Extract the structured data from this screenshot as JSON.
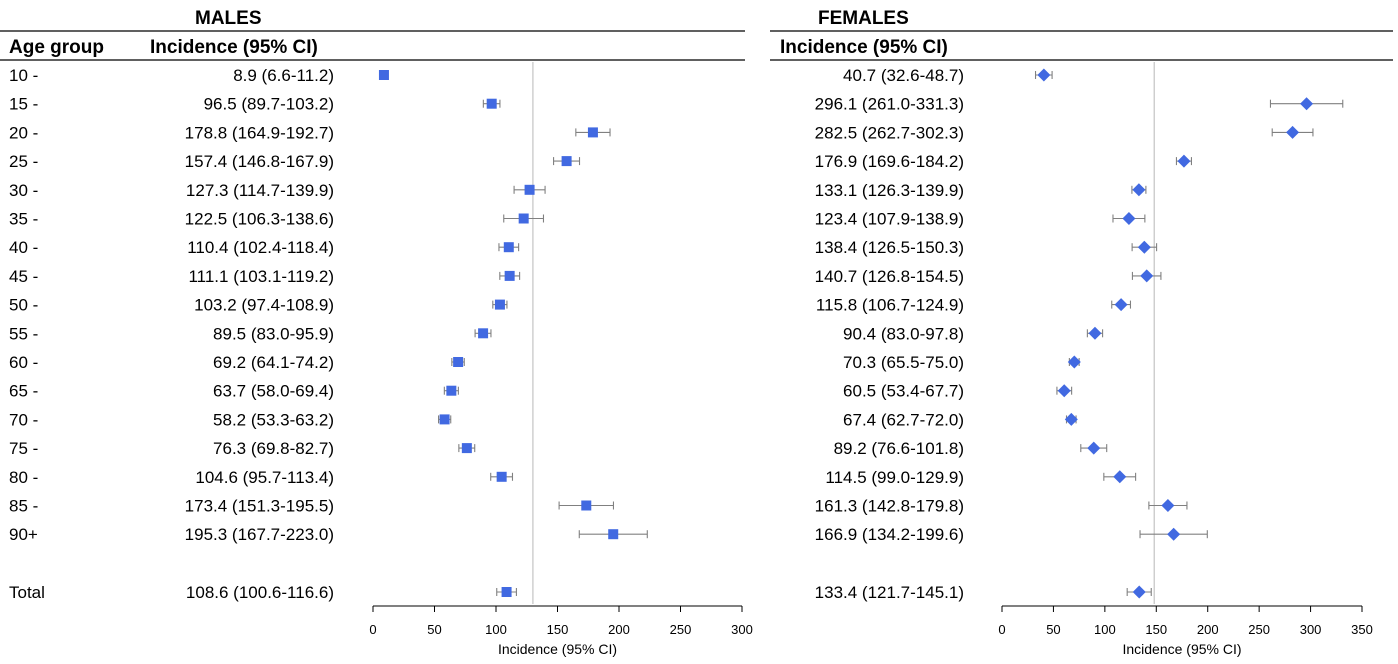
{
  "chart_data": [
    {
      "type": "forest",
      "title": "MALES",
      "headers": {
        "group": "Age group",
        "estimate": "Incidence (95% CI)"
      },
      "xlabel": "Incidence (95% CI)",
      "xlim": [
        0,
        300
      ],
      "xticks": [
        "0",
        "50",
        "100",
        "150",
        "200",
        "250",
        "300"
      ],
      "xtick_values": [
        0,
        50,
        100,
        150,
        200,
        250,
        300
      ],
      "reference_line": 130,
      "marker": "square",
      "color": "#4169e1",
      "ci_color": "#808080",
      "rows": [
        {
          "group": "10 -",
          "label": "8.9 (6.6-11.2)",
          "value": 8.9,
          "low": 6.6,
          "high": 11.2
        },
        {
          "group": "15 -",
          "label": "96.5 (89.7-103.2)",
          "value": 96.5,
          "low": 89.7,
          "high": 103.2
        },
        {
          "group": "20 -",
          "label": "178.8 (164.9-192.7)",
          "value": 178.8,
          "low": 164.9,
          "high": 192.7
        },
        {
          "group": "25 -",
          "label": "157.4 (146.8-167.9)",
          "value": 157.4,
          "low": 146.8,
          "high": 167.9
        },
        {
          "group": "30 -",
          "label": "127.3 (114.7-139.9)",
          "value": 127.3,
          "low": 114.7,
          "high": 139.9
        },
        {
          "group": "35 -",
          "label": "122.5 (106.3-138.6)",
          "value": 122.5,
          "low": 106.3,
          "high": 138.6
        },
        {
          "group": "40 -",
          "label": "110.4 (102.4-118.4)",
          "value": 110.4,
          "low": 102.4,
          "high": 118.4
        },
        {
          "group": "45 -",
          "label": "111.1 (103.1-119.2)",
          "value": 111.1,
          "low": 103.1,
          "high": 119.2
        },
        {
          "group": "50 -",
          "label": "103.2 (97.4-108.9)",
          "value": 103.2,
          "low": 97.4,
          "high": 108.9
        },
        {
          "group": "55 -",
          "label": "89.5 (83.0-95.9)",
          "value": 89.5,
          "low": 83.0,
          "high": 95.9
        },
        {
          "group": "60 -",
          "label": "69.2 (64.1-74.2)",
          "value": 69.2,
          "low": 64.1,
          "high": 74.2
        },
        {
          "group": "65 -",
          "label": "63.7 (58.0-69.4)",
          "value": 63.7,
          "low": 58.0,
          "high": 69.4
        },
        {
          "group": "70 -",
          "label": "58.2 (53.3-63.2)",
          "value": 58.2,
          "low": 53.3,
          "high": 63.2
        },
        {
          "group": "75 -",
          "label": "76.3 (69.8-82.7)",
          "value": 76.3,
          "low": 69.8,
          "high": 82.7
        },
        {
          "group": "80 -",
          "label": "104.6 (95.7-113.4)",
          "value": 104.6,
          "low": 95.7,
          "high": 113.4
        },
        {
          "group": "85 -",
          "label": "173.4 (151.3-195.5)",
          "value": 173.4,
          "low": 151.3,
          "high": 195.5
        },
        {
          "group": "90+",
          "label": "195.3 (167.7-223.0)",
          "value": 195.3,
          "low": 167.7,
          "high": 223.0
        }
      ],
      "total": {
        "group": "Total",
        "label": "108.6 (100.6-116.6)",
        "value": 108.6,
        "low": 100.6,
        "high": 116.6
      }
    },
    {
      "type": "forest",
      "title": "FEMALES",
      "headers": {
        "estimate": "Incidence (95% CI)"
      },
      "xlabel": "Incidence (95% CI)",
      "xlim": [
        0,
        350
      ],
      "xticks": [
        "0",
        "50",
        "100",
        "150",
        "200",
        "250",
        "300",
        "350"
      ],
      "xtick_values": [
        0,
        50,
        100,
        150,
        200,
        250,
        300,
        350
      ],
      "reference_line": 148,
      "marker": "diamond",
      "color": "#4169e1",
      "ci_color": "#808080",
      "rows": [
        {
          "label": "40.7 (32.6-48.7)",
          "value": 40.7,
          "low": 32.6,
          "high": 48.7
        },
        {
          "label": "296.1 (261.0-331.3)",
          "value": 296.1,
          "low": 261.0,
          "high": 331.3
        },
        {
          "label": "282.5 (262.7-302.3)",
          "value": 282.5,
          "low": 262.7,
          "high": 302.3
        },
        {
          "label": "176.9 (169.6-184.2)",
          "value": 176.9,
          "low": 169.6,
          "high": 184.2
        },
        {
          "label": "133.1 (126.3-139.9)",
          "value": 133.1,
          "low": 126.3,
          "high": 139.9
        },
        {
          "label": "123.4 (107.9-138.9)",
          "value": 123.4,
          "low": 107.9,
          "high": 138.9
        },
        {
          "label": "138.4 (126.5-150.3)",
          "value": 138.4,
          "low": 126.5,
          "high": 150.3
        },
        {
          "label": "140.7 (126.8-154.5)",
          "value": 140.7,
          "low": 126.8,
          "high": 154.5
        },
        {
          "label": "115.8 (106.7-124.9)",
          "value": 115.8,
          "low": 106.7,
          "high": 124.9
        },
        {
          "label": "90.4 (83.0-97.8)",
          "value": 90.4,
          "low": 83.0,
          "high": 97.8
        },
        {
          "label": "70.3 (65.5-75.0)",
          "value": 70.3,
          "low": 65.5,
          "high": 75.0
        },
        {
          "label": "60.5 (53.4-67.7)",
          "value": 60.5,
          "low": 53.4,
          "high": 67.7
        },
        {
          "label": "67.4 (62.7-72.0)",
          "value": 67.4,
          "low": 62.7,
          "high": 72.0
        },
        {
          "label": "89.2 (76.6-101.8)",
          "value": 89.2,
          "low": 76.6,
          "high": 101.8
        },
        {
          "label": "114.5 (99.0-129.9)",
          "value": 114.5,
          "low": 99.0,
          "high": 129.9
        },
        {
          "label": "161.3 (142.8-179.8)",
          "value": 161.3,
          "low": 142.8,
          "high": 179.8
        },
        {
          "label": "166.9 (134.2-199.6)",
          "value": 166.9,
          "low": 134.2,
          "high": 199.6
        }
      ],
      "total": {
        "label": "133.4 (121.7-145.1)",
        "value": 133.4,
        "low": 121.7,
        "high": 145.1
      }
    }
  ]
}
